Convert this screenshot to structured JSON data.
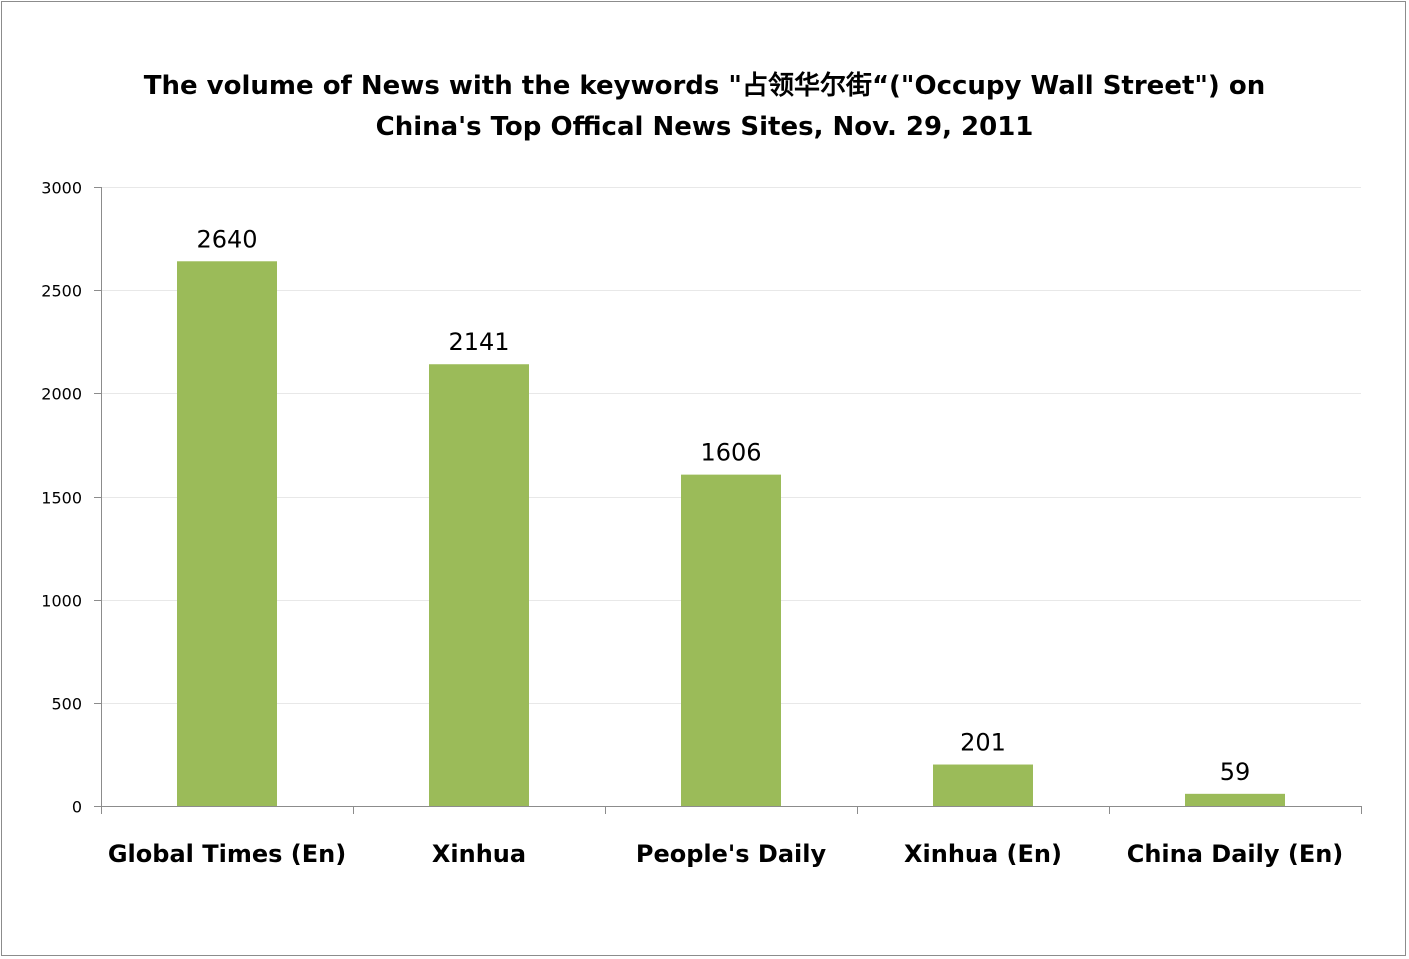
{
  "chart_data": {
    "type": "bar",
    "title_line1": "The volume of News with the keywords \"占领华尔街“(\"Occupy Wall Street\") on",
    "title_line2": "China's Top Offical News Sites, Nov. 29, 2011",
    "categories": [
      "Global Times (En)",
      "Xinhua",
      "People's Daily",
      "Xinhua (En)",
      "China Daily (En)"
    ],
    "values": [
      2640,
      2141,
      1606,
      201,
      59
    ],
    "data_labels": [
      "2640",
      "2141",
      "1606",
      "201",
      "59"
    ],
    "ylim": [
      0,
      3000
    ],
    "yticks": [
      0,
      500,
      1000,
      1500,
      2000,
      2500,
      3000
    ],
    "ytick_labels": [
      "0",
      "500",
      "1000",
      "1500",
      "2000",
      "2500",
      "3000"
    ],
    "xlabel": "",
    "ylabel": "",
    "grid": true,
    "legend": "none",
    "colors": {
      "bar": "#9bbb59",
      "grid": "#e8e8e8",
      "axis": "#8c8c8c",
      "text": "#000000"
    }
  }
}
